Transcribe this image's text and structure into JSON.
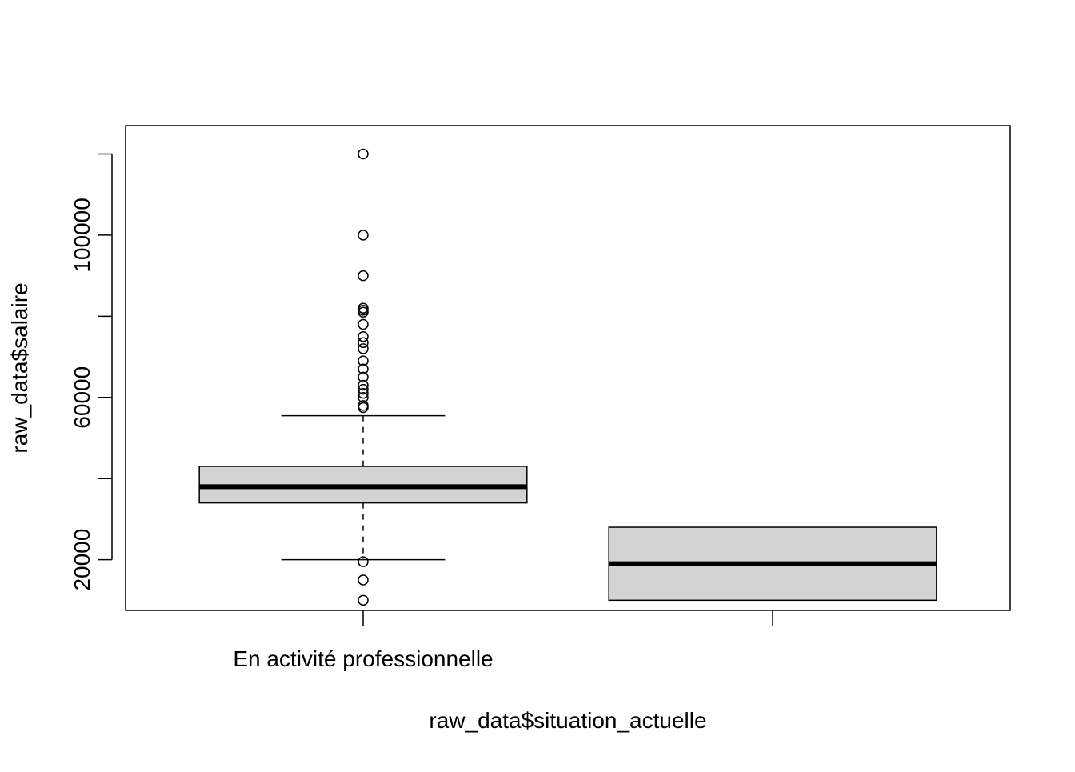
{
  "chart_data": {
    "type": "boxplot",
    "title": "",
    "xlabel": "raw_data$situation_actuelle",
    "ylabel": "raw_data$salaire",
    "ylim": [
      7500,
      127000
    ],
    "yticks": [
      20000,
      40000,
      60000,
      80000,
      100000,
      120000
    ],
    "ytick_labels": [
      "20000",
      "",
      "60000",
      "",
      "100000",
      ""
    ],
    "categories": [
      "En activité professionnelle",
      ""
    ],
    "grid": false,
    "box_fill": "#d3d3d3",
    "series": [
      {
        "category": "En activité professionnelle",
        "whisker_low": 20000,
        "q1": 34000,
        "median": 38000,
        "q3": 43000,
        "whisker_high": 55500,
        "outliers": [
          120000,
          100000,
          90000,
          82000,
          81500,
          81000,
          78000,
          75000,
          73500,
          72000,
          69000,
          67000,
          65000,
          63000,
          62000,
          61000,
          60000,
          58000,
          57500,
          19500,
          15000,
          10000
        ]
      },
      {
        "category": "",
        "whisker_low": 10000,
        "q1": 10000,
        "median": 19000,
        "q3": 28000,
        "whisker_high": 28000,
        "outliers": []
      }
    ]
  }
}
